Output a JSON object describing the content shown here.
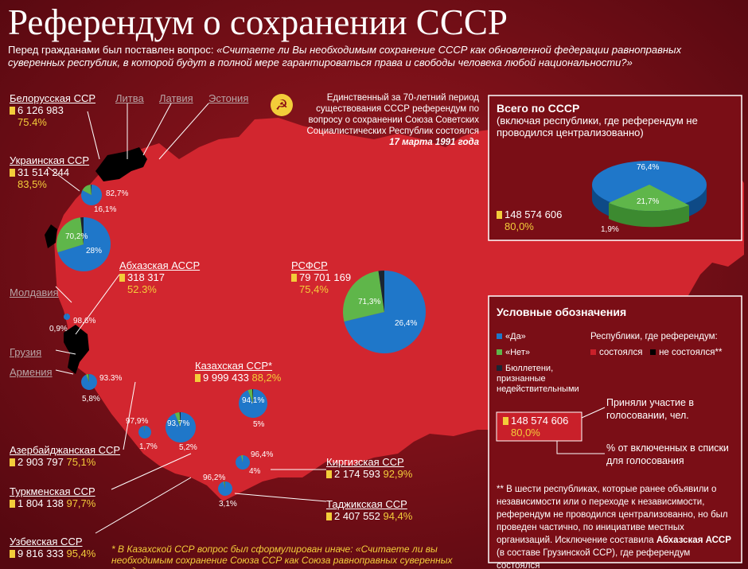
{
  "header": {
    "title": "Референдум о сохранении СССР",
    "intro_plain": "Перед гражданами был поставлен вопрос: ",
    "intro_question": "«Считаете ли Вы необходимым сохранение СССР как обновленной федерации равноправных суверенных республик, в которой будут в полной мере гарантироваться права и свободы человека любой национальности?»"
  },
  "colors": {
    "yes": "#1f77c9",
    "no": "#5fb64a",
    "invalid": "#1a2533",
    "held": "#c9202a",
    "not_held": "#000000",
    "accent": "#f3cd3a"
  },
  "icons": {
    "hammer_sickle": "hammer-sickle-icon",
    "voter": "voter-icon"
  },
  "soviet_note": {
    "text": "Единственный за 70-летний период существования СССР референдум по вопросу о сохранении Союза Советских Социалистических Республик состоялся ",
    "date": "17 марта 1991 года"
  },
  "regions": {
    "belarus": {
      "name": "Белорусская ССР",
      "voters": "6 126 983",
      "pct": "75.4%",
      "yes": "82,7%",
      "no": "16,1%"
    },
    "ukraine": {
      "name": "Украинская ССР",
      "voters": "31 514 244",
      "pct": "83,5%",
      "yes": "70,2%",
      "no": "28%"
    },
    "lithuania": "Литва",
    "latvia": "Латвия",
    "estonia": "Эстония",
    "moldova": "Молдавия",
    "georgia": "Грузия",
    "armenia": "Армения",
    "abkhazia": {
      "name": "Абхазская АССР",
      "voters": "318 317",
      "pct": "52.3%",
      "yes": "98,6%",
      "no": "0,9%"
    },
    "rsfsr": {
      "name": "РСФСР",
      "voters": "79 701 169",
      "pct": "75,4%",
      "yes": "71,3%",
      "no": "26,4%"
    },
    "kazakh": {
      "name": "Казахская ССР*",
      "voters": "9 999 433",
      "pct": "88,2%",
      "yes": "94,1%",
      "no": "5%"
    },
    "azerbaijan": {
      "name": "Азербайджанская ССР",
      "voters": "2 903 797",
      "pct": "75,1%",
      "yes": "93.3%",
      "no": "5,8%"
    },
    "turkmen": {
      "name": "Туркменская ССР",
      "voters": "1 804 138",
      "pct": "97,7%",
      "yes": "97,9%",
      "no": "1,7%"
    },
    "uzbek": {
      "name": "Узбекская ССР",
      "voters": "9 816 333",
      "pct": "95,4%",
      "yes": "93,7%",
      "no": "5,2%"
    },
    "kyrgyz": {
      "name": "Киргизская ССР",
      "voters": "2 174 593",
      "pct": "92,9%",
      "yes": "96,4%",
      "no": "4%"
    },
    "tajik": {
      "name": "Таджикская ССР",
      "voters": "2 407 552",
      "pct": "94,4%",
      "yes": "96,2%",
      "no": "3,1%"
    }
  },
  "total": {
    "title": "Всего по СССР",
    "subtitle": "(включая республики, где референдум не проводился централизованно)",
    "voters": "148 574 606",
    "pct": "80,0%",
    "yes": "76,4%",
    "no": "21,7%",
    "invalid": "1,9%"
  },
  "legend": {
    "title": "Условные обозначения",
    "yes": "«Да»",
    "no": "«Нет»",
    "invalid": "Бюллетени, признанные недействительными",
    "republics_title": "Республики, где референдум:",
    "held": "состоялся",
    "not_held": "не состоялся**",
    "example_voters": "148 574 606",
    "example_pct": "80,0%",
    "took_part": "Приняли участие в голосовании, чел.",
    "pct_of_included": "% от включенных в списки для голосования",
    "footnote_prefix": "** В шести республиках, которые ранее объявили о независимости или о переходе к независимости, референдум не проводился централизованно, но был проведен частично, по инициативе местных организаций. Исключение составила ",
    "footnote_bold": "Абхазская АССР",
    "footnote_suffix": " (в составе Грузинской ССР), где референдум состоялся"
  },
  "kazakh_footnote": "* В Казахской ССР вопрос был сформулирован иначе: «Считаете ли вы необходимым сохранение Союза ССР как Союза равноправных суверенных государств»"
}
